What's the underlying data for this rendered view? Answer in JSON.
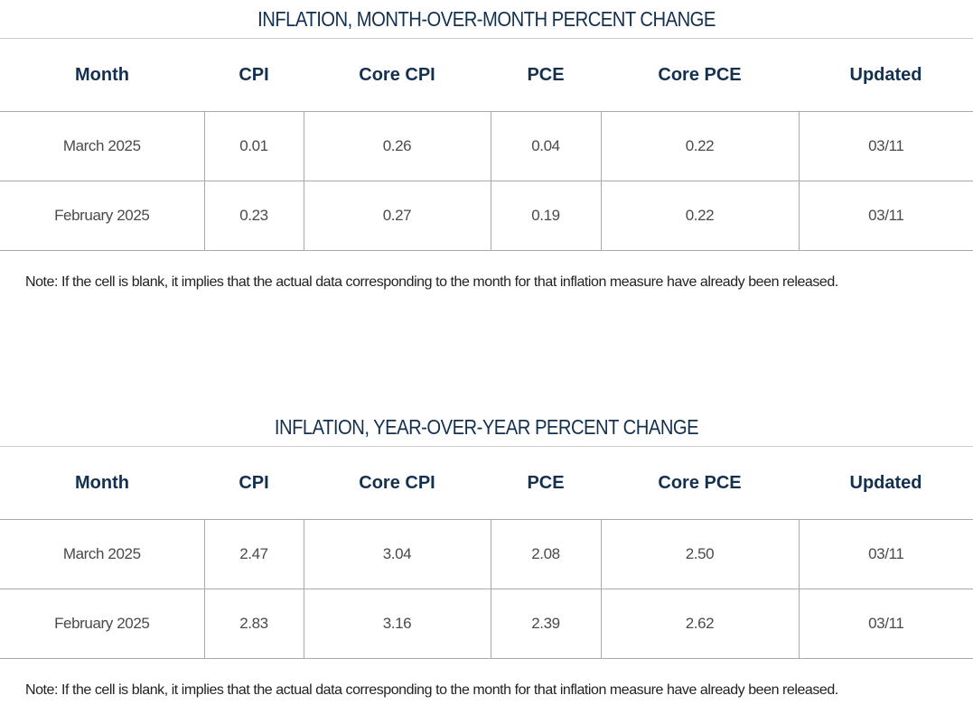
{
  "columns": [
    "Month",
    "CPI",
    "Core CPI",
    "PCE",
    "Core PCE",
    "Updated"
  ],
  "mom": {
    "title": "INFLATION, MONTH-OVER-MONTH PERCENT CHANGE",
    "rows": [
      {
        "month": "March 2025",
        "cpi": "0.01",
        "core_cpi": "0.26",
        "pce": "0.04",
        "core_pce": "0.22",
        "updated": "03/11"
      },
      {
        "month": "February 2025",
        "cpi": "0.23",
        "core_cpi": "0.27",
        "pce": "0.19",
        "core_pce": "0.22",
        "updated": "03/11"
      }
    ],
    "note": "Note: If the cell is blank, it implies that the actual data corresponding to the month for that inflation measure have already been released."
  },
  "yoy": {
    "title": "INFLATION, YEAR-OVER-YEAR PERCENT CHANGE",
    "rows": [
      {
        "month": "March 2025",
        "cpi": "2.47",
        "core_cpi": "3.04",
        "pce": "2.08",
        "core_pce": "2.50",
        "updated": "03/11"
      },
      {
        "month": "February 2025",
        "cpi": "2.83",
        "core_cpi": "3.16",
        "pce": "2.39",
        "core_pce": "2.62",
        "updated": "03/11"
      }
    ],
    "note": "Note: If the cell is blank, it implies that the actual data corresponding to the month for that inflation measure have already been released."
  },
  "colors": {
    "heading": "#14304f",
    "cell_text": "#4a4a4a",
    "border": "#a9a9a9"
  }
}
